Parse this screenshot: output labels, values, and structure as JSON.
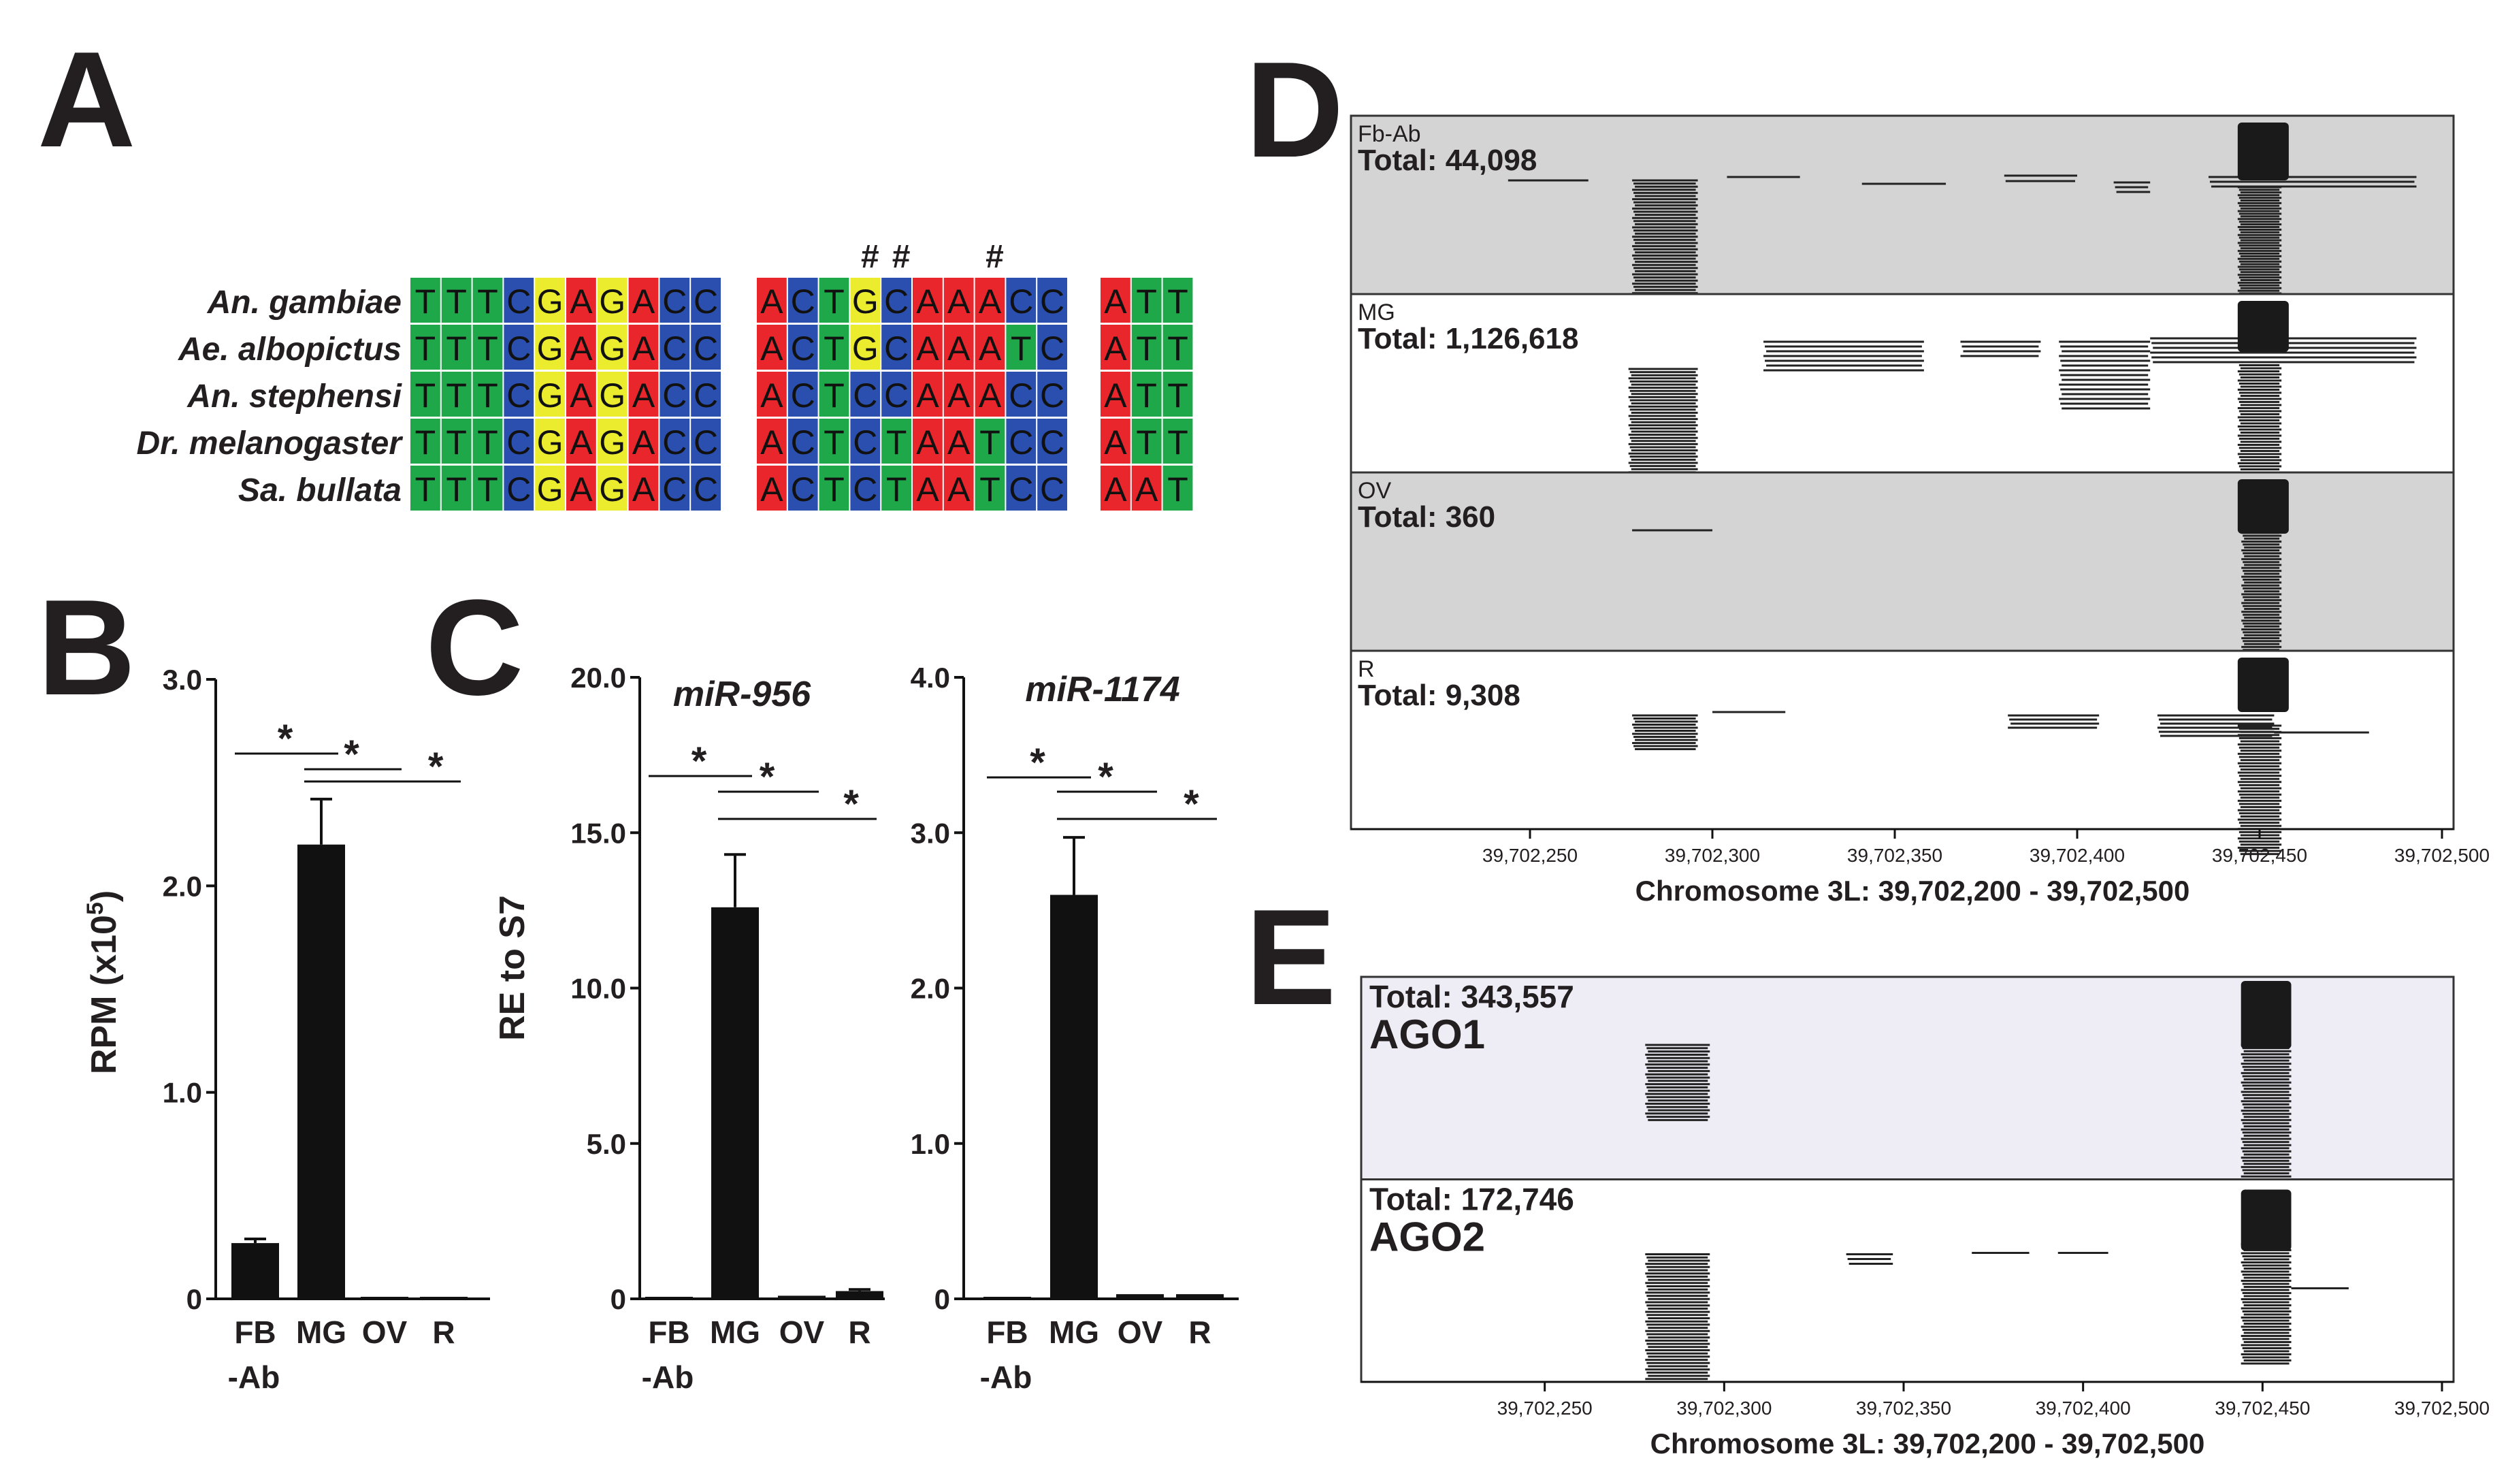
{
  "panels": {
    "a": "A",
    "b": "B",
    "c": "C",
    "d": "D",
    "e": "E"
  },
  "colors": {
    "A": "#e8262b",
    "C": "#2a4fae",
    "G": "#ecec2e",
    "T": "#1fa84a",
    "track_shade": "#d4d4d4",
    "track_shade_e": "#eeedf6",
    "bar": "#111111",
    "read": "#222222"
  },
  "alignment": {
    "marks": [
      "#",
      "#",
      "#"
    ],
    "rows": [
      {
        "species": "An. gambiae",
        "blocks": [
          "TTTCGAGACC",
          "ACTGCAAACC",
          "ATT"
        ]
      },
      {
        "species": "Ae. albopictus",
        "blocks": [
          "TTTCGAGACC",
          "ACTGCAAATC",
          "ATT"
        ]
      },
      {
        "species": "An. stephensi",
        "blocks": [
          "TTTCGAGACC",
          "ACTCCAAACC",
          "ATT"
        ]
      },
      {
        "species": "Dr. melanogaster",
        "blocks": [
          "TTTCGAGACC",
          "ACTCTAATCC",
          "ATT"
        ]
      },
      {
        "species": "Sa. bullata",
        "blocks": [
          "TTTCGAGACC",
          "ACTCTAATCC",
          "AAT"
        ]
      }
    ]
  },
  "chart_data": [
    {
      "panel": "B",
      "type": "bar",
      "categories": [
        "FB\n-Ab",
        "MG",
        "OV",
        "R"
      ],
      "values": [
        0.27,
        2.2,
        0.0,
        0.0
      ],
      "errors": [
        0.02,
        0.22,
        0.0,
        0.0
      ],
      "ylim": [
        0,
        3
      ],
      "yticks": [
        "0",
        "1.0",
        "2.0",
        "3.0"
      ],
      "ytick_values": [
        0,
        1,
        2,
        3
      ],
      "ylabel": "RPM (x10",
      "ylabel_sup": "5",
      "ylabel_end": ")",
      "title": "",
      "significance": [
        "*",
        "*",
        "*"
      ]
    },
    {
      "panel": "C",
      "type": "bar",
      "categories": [
        "FB\n-Ab",
        "MG",
        "OV",
        "R"
      ],
      "values": [
        0.05,
        12.6,
        0.1,
        0.25
      ],
      "errors": [
        0.0,
        1.7,
        0.0,
        0.05
      ],
      "ylim": [
        0,
        20
      ],
      "yticks": [
        "0",
        "5.0",
        "10.0",
        "15.0",
        "20.0"
      ],
      "ytick_values": [
        0,
        5,
        10,
        15,
        20
      ],
      "ylabel": "RE to S7",
      "title": "miR-956",
      "significance": [
        "*",
        "*",
        "*"
      ]
    },
    {
      "panel": "C",
      "type": "bar",
      "categories": [
        "FB\n-Ab",
        "MG",
        "OV",
        "R"
      ],
      "values": [
        0.01,
        2.6,
        0.03,
        0.03
      ],
      "errors": [
        0.0,
        0.37,
        0.0,
        0.0
      ],
      "ylim": [
        0,
        4
      ],
      "yticks": [
        "0",
        "1.0",
        "2.0",
        "3.0",
        "4.0"
      ],
      "ytick_values": [
        0,
        1,
        2,
        3,
        4
      ],
      "ylabel": "",
      "title": "miR-1174",
      "significance": [
        "*",
        "*",
        "*"
      ]
    },
    {
      "panel": "D",
      "type": "read-tracks",
      "xlim": [
        39702200,
        39702500
      ],
      "xticks": [
        "39,702,250",
        "39,702,300",
        "39,702,350",
        "39,702,400",
        "39,702,450",
        "39,702,500"
      ],
      "xtick_values": [
        39702250,
        39702300,
        39702350,
        39702400,
        39702450,
        39702500
      ],
      "xlabel": "Chromosome 3L:  39,702,200 - 39,702,500",
      "tracks": [
        {
          "name": "Fb-Ab",
          "total": "Total:  44,098",
          "shaded": true
        },
        {
          "name": "MG",
          "total": "Total:  1,126,618",
          "shaded": false
        },
        {
          "name": "OV",
          "total": "Total:  360",
          "shaded": true
        },
        {
          "name": "R",
          "total": "Total:  9,308",
          "shaded": false
        }
      ]
    },
    {
      "panel": "E",
      "type": "read-tracks",
      "xlim": [
        39702200,
        39702500
      ],
      "xticks": [
        "39,702,250",
        "39,702,300",
        "39,702,350",
        "39,702,400",
        "39,702,450",
        "39,702,500"
      ],
      "xtick_values": [
        39702250,
        39702300,
        39702350,
        39702400,
        39702450,
        39702500
      ],
      "xlabel": "Chromosome 3L:  39,702,200 - 39,702,500",
      "tracks": [
        {
          "name": "AGO1",
          "total": "Total:  343,557",
          "shaded": true
        },
        {
          "name": "AGO2",
          "total": "Total:  172,746",
          "shaded": false
        }
      ]
    }
  ]
}
